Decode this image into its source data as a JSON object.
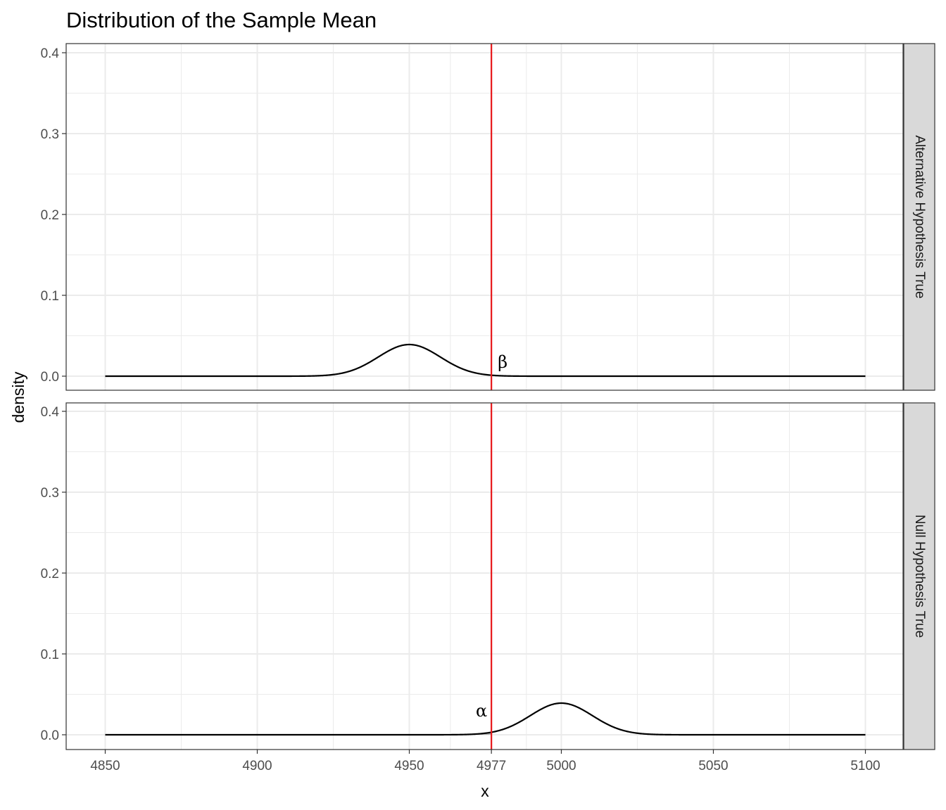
{
  "chart_data": {
    "type": "line",
    "title": "Distribution of the Sample Mean",
    "xlabel": "x",
    "ylabel": "density",
    "x_ticks": [
      4850,
      4900,
      4950,
      4977,
      5000,
      5050,
      5100
    ],
    "x_tick_labels": [
      "4850",
      "4900",
      "4950",
      "4977",
      "5000",
      "5050",
      "5100"
    ],
    "y_ticks": [
      0.0,
      0.1,
      0.2,
      0.3,
      0.4
    ],
    "y_tick_labels": [
      "0.0",
      "0.1",
      "0.2",
      "0.3",
      "0.4"
    ],
    "xlim": [
      4850,
      5100
    ],
    "ylim": [
      0,
      0.4
    ],
    "critical_value": 4977,
    "critical_line_color": "#e8171a",
    "shade_color": "#b3b3b3",
    "grid": true,
    "theme": "bw",
    "panels": [
      {
        "strip": "Alternative Hypothesis True",
        "distribution": "normal",
        "mean": 4950,
        "sd": 10.2,
        "peak_density": 0.392,
        "shaded_region": "right of critical value",
        "shaded_label": "β"
      },
      {
        "strip": "Null Hypothesis True",
        "distribution": "normal",
        "mean": 5000,
        "sd": 10.2,
        "peak_density": 0.392,
        "shaded_region": "left of critical value",
        "shaded_label": "α"
      }
    ]
  }
}
